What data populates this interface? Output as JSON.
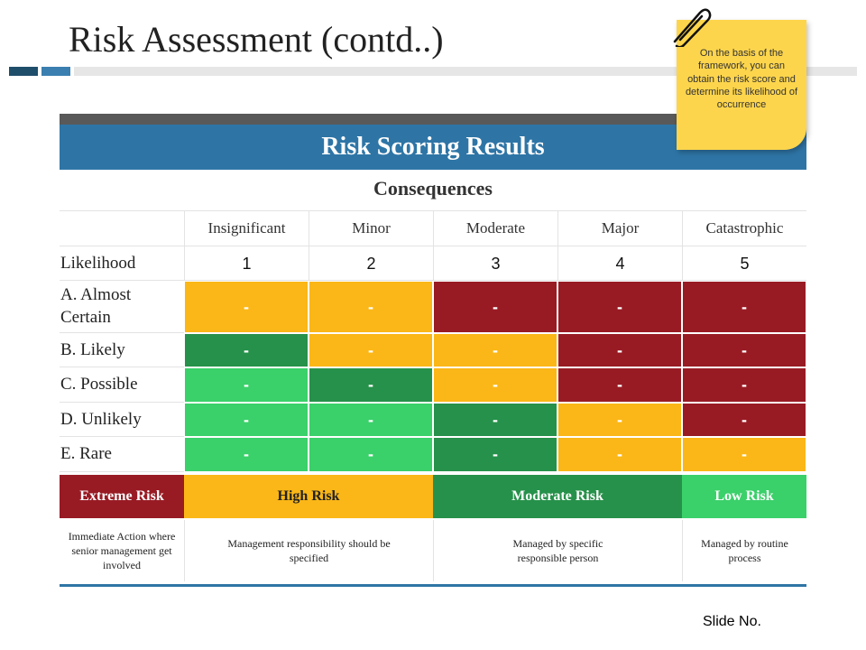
{
  "page": {
    "title": "Risk Assessment (contd..)",
    "slide_label": "Slide No."
  },
  "note": {
    "text": "On the basis of the framework, you can obtain the risk score and determine its likelihood of occurrence"
  },
  "table": {
    "header": "Risk Scoring Results",
    "consequences_label": "Consequences",
    "likelihood_label": "Likelihood",
    "columns": [
      "Insignificant",
      "Minor",
      "Moderate",
      "Major",
      "Catastrophic"
    ],
    "numbers": [
      "1",
      "2",
      "3",
      "4",
      "5"
    ],
    "rows": [
      {
        "label": "A. Almost Certain",
        "cells": [
          "-",
          "-",
          "-",
          "-",
          "-"
        ],
        "levels": [
          "high",
          "high",
          "extreme",
          "extreme",
          "extreme"
        ]
      },
      {
        "label": "B. Likely",
        "cells": [
          "-",
          "-",
          "-",
          "-",
          "-"
        ],
        "levels": [
          "moderate",
          "high",
          "high",
          "extreme",
          "extreme"
        ]
      },
      {
        "label": "C. Possible",
        "cells": [
          "-",
          "-",
          "-",
          "-",
          "-"
        ],
        "levels": [
          "low",
          "moderate",
          "high",
          "extreme",
          "extreme"
        ]
      },
      {
        "label": "D. Unlikely",
        "cells": [
          "-",
          "-",
          "-",
          "-",
          "-"
        ],
        "levels": [
          "low",
          "low",
          "moderate",
          "high",
          "extreme"
        ]
      },
      {
        "label": "E. Rare",
        "cells": [
          "-",
          "-",
          "-",
          "-",
          "-"
        ],
        "levels": [
          "low",
          "low",
          "moderate",
          "high",
          "high"
        ]
      }
    ]
  },
  "legend": [
    {
      "label": "Extreme Risk",
      "color": "#981b24",
      "description": "Immediate Action where senior management get involved"
    },
    {
      "label": "High Risk",
      "color": "#fbb717",
      "description": "Management responsibility should be specified"
    },
    {
      "label": "Moderate Risk",
      "color": "#26914a",
      "description": "Managed by specific responsible person"
    },
    {
      "label": "Low Risk",
      "color": "#3ad06a",
      "description": "Managed by routine process"
    }
  ]
}
